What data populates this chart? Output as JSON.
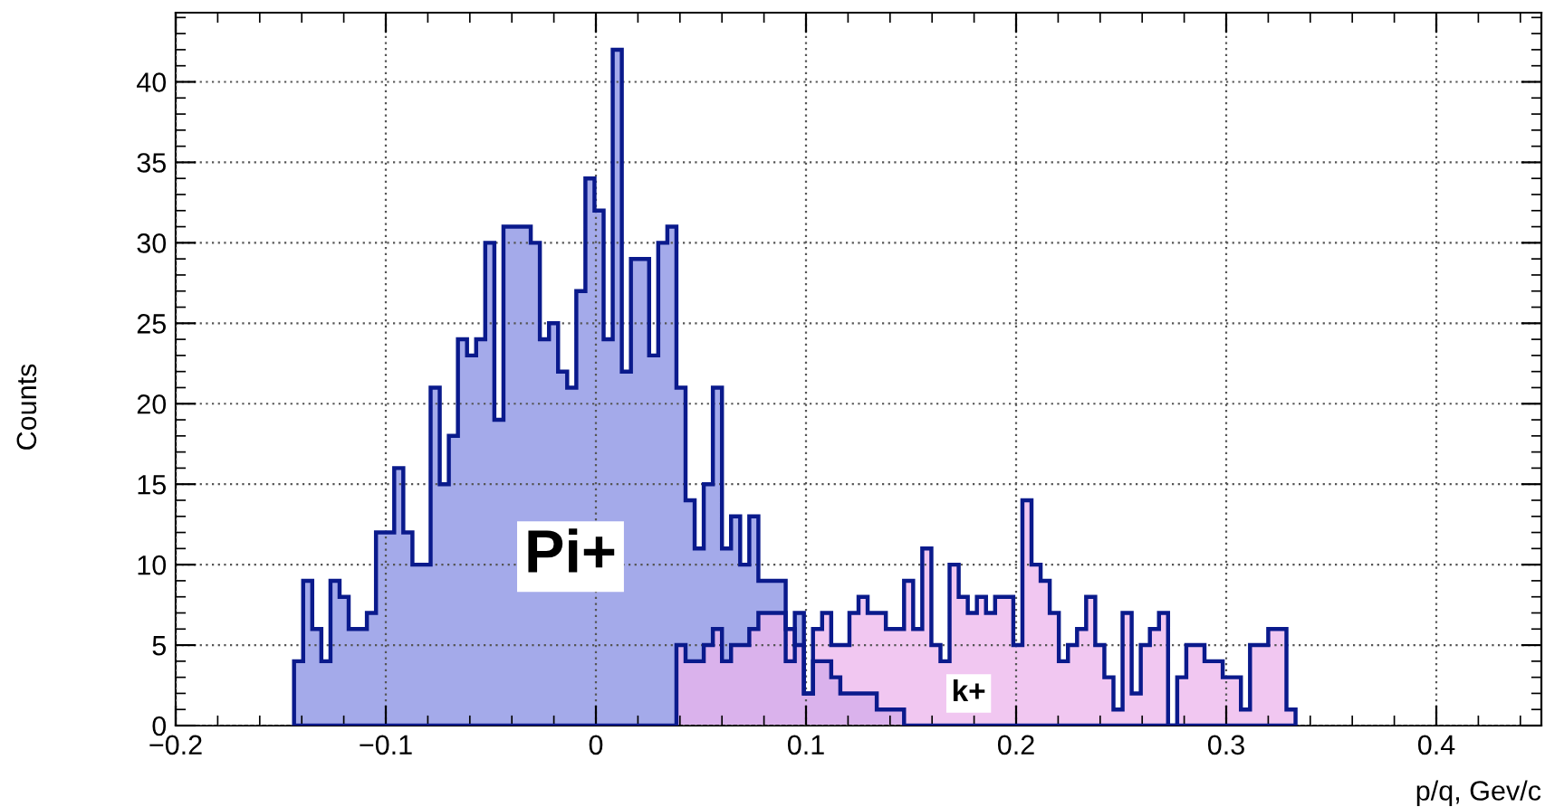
{
  "chart_data": {
    "type": "histogram",
    "xlabel": "p/q, Gev/c",
    "ylabel": "Counts",
    "bins": [
      -0.14367,
      -0.13933,
      -0.135,
      -0.13067,
      -0.12633,
      -0.122,
      -0.11767,
      -0.11333,
      -0.109,
      -0.10467,
      -0.10033,
      -0.096,
      -0.09167,
      -0.08733,
      -0.083,
      -0.07867,
      -0.07433,
      -0.07,
      -0.06567,
      -0.06133,
      -0.057,
      -0.05267,
      -0.04833,
      -0.044,
      -0.03967,
      -0.03533,
      -0.031,
      -0.02667,
      -0.02233,
      -0.018,
      -0.01367,
      -0.00933,
      -0.005,
      -0.00067,
      0.00367,
      0.008,
      0.01233,
      0.01667,
      0.021,
      0.02533,
      0.02967,
      0.034,
      0.03833,
      0.04267,
      0.047,
      0.05133,
      0.05567,
      0.06,
      0.06433,
      0.06867,
      0.073,
      0.07733,
      0.08167,
      0.086,
      0.09033,
      0.09467,
      0.099,
      0.10333,
      0.10767,
      0.112,
      0.11633,
      0.12067,
      0.125,
      0.12933,
      0.13367,
      0.138,
      0.14233,
      0.14667,
      0.151,
      0.15533,
      0.15967,
      0.164,
      0.16833,
      0.17267,
      0.177,
      0.18133,
      0.18567,
      0.19,
      0.19433,
      0.19867,
      0.203,
      0.20733,
      0.21167,
      0.216,
      0.22033,
      0.22467,
      0.229,
      0.23333,
      0.23767,
      0.242,
      0.24633,
      0.25067,
      0.255,
      0.25933,
      0.26367,
      0.268,
      0.27233,
      0.27667,
      0.281,
      0.28533,
      0.28967,
      0.294,
      0.29833,
      0.30267,
      0.307,
      0.31133,
      0.31567,
      0.32,
      0.32433,
      0.32867,
      0.333
    ],
    "series": [
      {
        "name": "Pi+",
        "color": "#a4aaea",
        "values": [
          4,
          9,
          6,
          4,
          9,
          8,
          6,
          6,
          7,
          12,
          12,
          16,
          12,
          10,
          10,
          21,
          15,
          18,
          24,
          23,
          24,
          30,
          19,
          31,
          31,
          31,
          30,
          24,
          25,
          22,
          21,
          27,
          34,
          32,
          24,
          42,
          22,
          29,
          29,
          23,
          30,
          31,
          21,
          14,
          11,
          15,
          21,
          11,
          13,
          10,
          13,
          9,
          9,
          9,
          4,
          7,
          2,
          4,
          4,
          3,
          2,
          2,
          2,
          2,
          1,
          1,
          1,
          0,
          0,
          0,
          0,
          0,
          0,
          0,
          0,
          0,
          0,
          0,
          0,
          0,
          0,
          0,
          0,
          0,
          0,
          0,
          0,
          0,
          0,
          0,
          0,
          0,
          0,
          0,
          0,
          0,
          0,
          0,
          0,
          0,
          0,
          0,
          0,
          0,
          0,
          0,
          0,
          0,
          0,
          0
        ]
      },
      {
        "name": "k+",
        "color": "#ecb4ec",
        "values": [
          0,
          0,
          0,
          0,
          0,
          0,
          0,
          0,
          0,
          0,
          0,
          0,
          0,
          0,
          0,
          0,
          0,
          0,
          0,
          0,
          0,
          0,
          0,
          0,
          0,
          0,
          0,
          0,
          0,
          0,
          0,
          0,
          0,
          0,
          0,
          0,
          0,
          0,
          0,
          0,
          0,
          0,
          5,
          4,
          4,
          5,
          6,
          4,
          5,
          5,
          6,
          7,
          7,
          7,
          6,
          5,
          2,
          6,
          7,
          5,
          5,
          7,
          8,
          7,
          7,
          6,
          6,
          9,
          6,
          11,
          5,
          4,
          10,
          8,
          7,
          8,
          7,
          8,
          8,
          5,
          14,
          10,
          9,
          7,
          4,
          5,
          6,
          8,
          5,
          3,
          1,
          7,
          2,
          5,
          6,
          7,
          0,
          3,
          5,
          5,
          4,
          4,
          3,
          3,
          1,
          5,
          5,
          6,
          6,
          1
        ]
      }
    ],
    "xlim": [
      -0.2,
      0.45
    ],
    "ylim": [
      0,
      44.3
    ],
    "xticks": [
      {
        "value": -0.2,
        "label": "−0.2"
      },
      {
        "value": -0.1,
        "label": "−0.1"
      },
      0,
      0.1,
      0.2,
      0.3,
      0.4
    ],
    "yticks": [
      0,
      5,
      10,
      15,
      20,
      25,
      30,
      35,
      40
    ],
    "grid": true,
    "legend": false
  }
}
